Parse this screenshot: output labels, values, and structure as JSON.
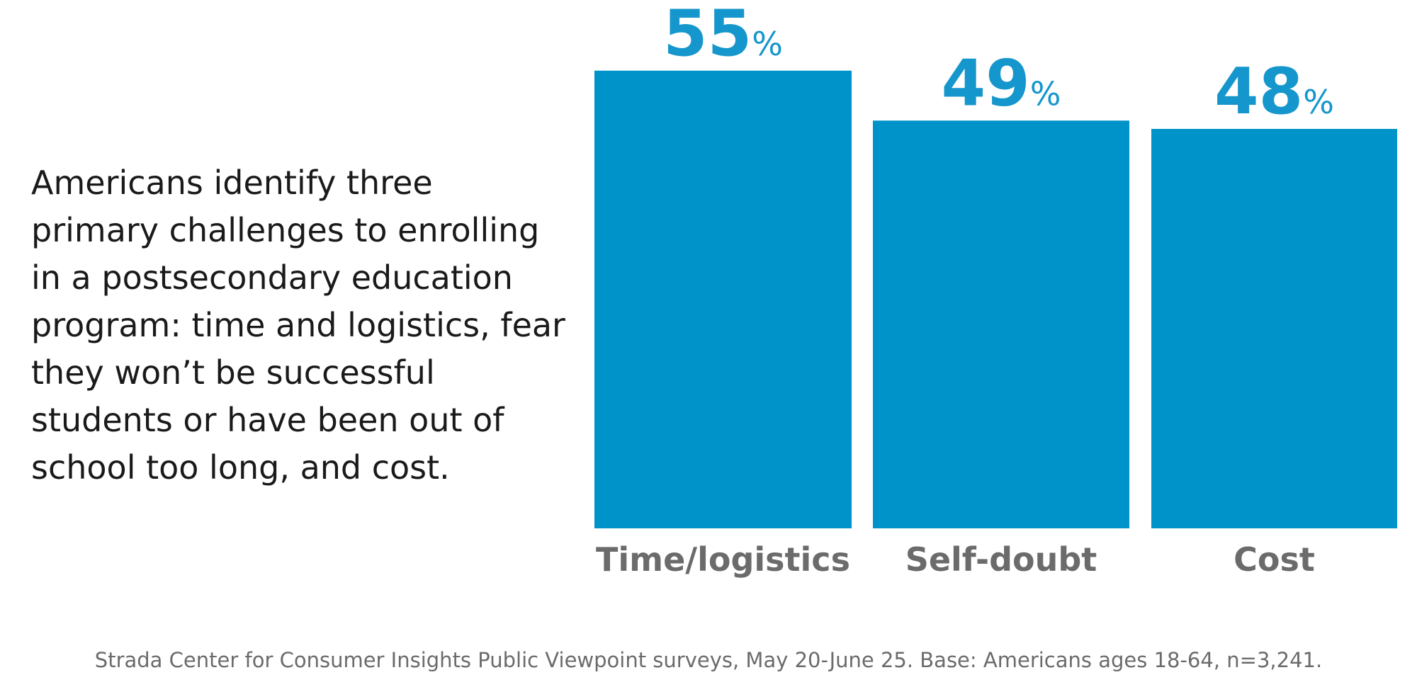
{
  "chart_data": {
    "type": "bar",
    "text": "Americans identify three primary challenges to enrolling in a postsecondary education program: time and logistics, fear they won’t be successful students or have been out of school too long, and cost.",
    "categories": [
      "Time/logistics",
      "Self-doubt",
      "Cost"
    ],
    "values": [
      55,
      49,
      48
    ],
    "value_labels": [
      "55%",
      "49%",
      "48%"
    ],
    "color": "#0093c9",
    "source": "Strada Center for Consumer Insights Public Viewpoint surveys, May 20-June 25. Base: Americans ages 18-64, n=3,241."
  }
}
